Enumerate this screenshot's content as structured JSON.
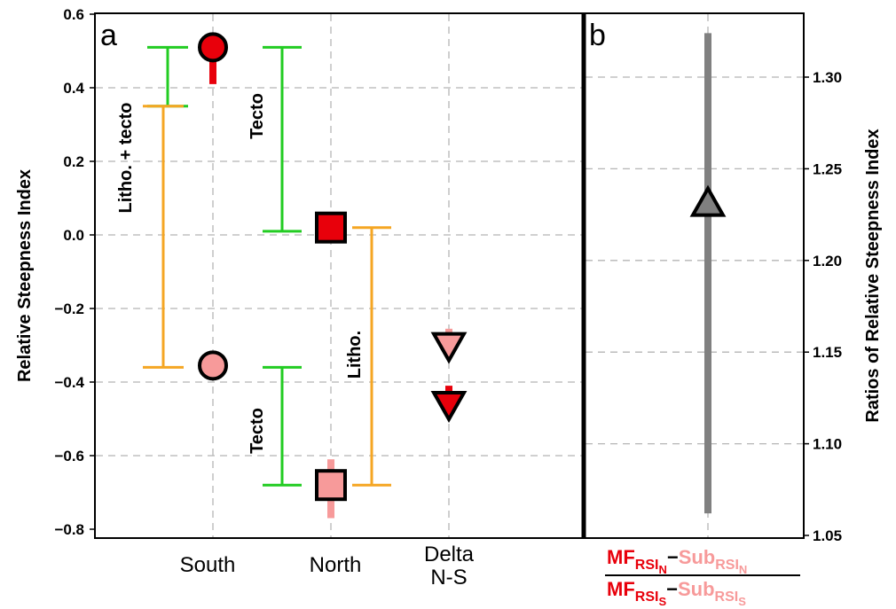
{
  "chart_data": [
    {
      "panel": "a",
      "type": "scatter",
      "ylabel": "Relative Steepness Index",
      "ylim": [
        -0.83,
        0.6
      ],
      "yticks": [
        "0.6",
        "0.4",
        "0.2",
        "0.0",
        "−0.2",
        "−0.4",
        "−0.6",
        "−0.8"
      ],
      "categories": [
        "South",
        "North",
        "Delta\nN-S"
      ],
      "grid": true,
      "points": [
        {
          "category": "South",
          "marker": "circle",
          "color": "#e8000b",
          "y": 0.51,
          "err_low": 0.41,
          "err_high": 0.51
        },
        {
          "category": "South",
          "marker": "circle",
          "color": "#f79a9a",
          "y": -0.355,
          "err_low": -0.355,
          "err_high": -0.355
        },
        {
          "category": "North",
          "marker": "square",
          "color": "#e8000b",
          "y": 0.02,
          "err_low": 0.02,
          "err_high": 0.02
        },
        {
          "category": "North",
          "marker": "square",
          "color": "#f79a9a",
          "y": -0.68,
          "err_low": -0.77,
          "err_high": -0.61
        },
        {
          "category": "Delta\nN-S",
          "marker": "triangle-down",
          "color": "#f79a9a",
          "y": -0.305,
          "err_low": -0.33,
          "err_high": -0.255
        },
        {
          "category": "Delta\nN-S",
          "marker": "triangle-down",
          "color": "#e8000b",
          "y": -0.465,
          "err_low": -0.49,
          "err_high": -0.41
        }
      ],
      "brackets": [
        {
          "label": "Litho. + tecto",
          "color": "#22cc22",
          "y_top": 0.51,
          "y_bottom": 0.35,
          "side": "south-left"
        },
        {
          "label": "",
          "color": "#f5a623",
          "y_top": 0.35,
          "y_bottom": -0.36,
          "side": "south-left"
        },
        {
          "label": "Tecto",
          "color": "#22cc22",
          "y_top": 0.51,
          "y_bottom": 0.01,
          "side": "north-left"
        },
        {
          "label": "Tecto",
          "color": "#22cc22",
          "y_top": -0.36,
          "y_bottom": -0.68,
          "side": "north-left"
        },
        {
          "label": "Litho.",
          "color": "#f5a623",
          "y_top": 0.02,
          "y_bottom": -0.68,
          "side": "north-right"
        }
      ],
      "annotations": [
        "Litho. + tecto",
        "Tecto",
        "Tecto",
        "Litho."
      ]
    },
    {
      "panel": "b",
      "type": "scatter",
      "ylabel": "Ratios of Relative Steepness Index",
      "ylim": [
        1.05,
        1.335
      ],
      "yticks": [
        "1.30",
        "1.25",
        "1.20",
        "1.15",
        "1.10",
        "1.05"
      ],
      "grid": true,
      "points": [
        {
          "marker": "triangle-up",
          "color": "#808080",
          "y": 1.232,
          "err_low": 1.062,
          "err_high": 1.324
        }
      ]
    }
  ],
  "ratio_label": {
    "num_mf": "MF",
    "num_mf_sub": "RSI",
    "num_mf_subsub": "N",
    "minus": "−",
    "num_sub": "Sub",
    "num_sub_sub": "RSI",
    "num_sub_subsub": "N",
    "den_mf": "MF",
    "den_mf_sub": "RSI",
    "den_mf_subsub": "S",
    "den_sub": "Sub",
    "den_sub_sub": "RSI",
    "den_sub_subsub": "S"
  },
  "colors": {
    "red": "#e8000b",
    "pink": "#f79a9a",
    "green": "#22cc22",
    "orange": "#f5a623",
    "gray": "#808080"
  }
}
